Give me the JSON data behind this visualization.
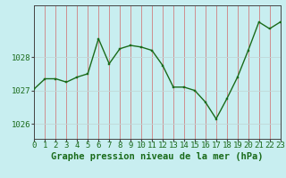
{
  "hours": [
    0,
    1,
    2,
    3,
    4,
    5,
    6,
    7,
    8,
    9,
    10,
    11,
    12,
    13,
    14,
    15,
    16,
    17,
    18,
    19,
    20,
    21,
    22,
    23
  ],
  "pressure": [
    1027.05,
    1027.35,
    1027.35,
    1027.25,
    1027.4,
    1027.5,
    1028.55,
    1027.8,
    1028.25,
    1028.35,
    1028.3,
    1028.2,
    1027.75,
    1027.1,
    1027.1,
    1027.0,
    1026.65,
    1026.15,
    1026.75,
    1027.4,
    1028.2,
    1029.05,
    1028.85,
    1029.05
  ],
  "bg_color": "#c8eef0",
  "line_color": "#1a6b1a",
  "marker_color": "#1a6b1a",
  "grid_color_v": "#d08080",
  "grid_color_h": "#c0d8d8",
  "ylabel_ticks": [
    1026,
    1027,
    1028
  ],
  "xlabel": "Graphe pression niveau de la mer (hPa)",
  "xlabel_color": "#1a6b1a",
  "ylim": [
    1025.55,
    1029.55
  ],
  "xlim": [
    0,
    23
  ],
  "tick_label_color": "#1a6b1a",
  "axis_color": "#444444",
  "font_size_xlabel": 7.5,
  "font_size_ticks": 6.5
}
